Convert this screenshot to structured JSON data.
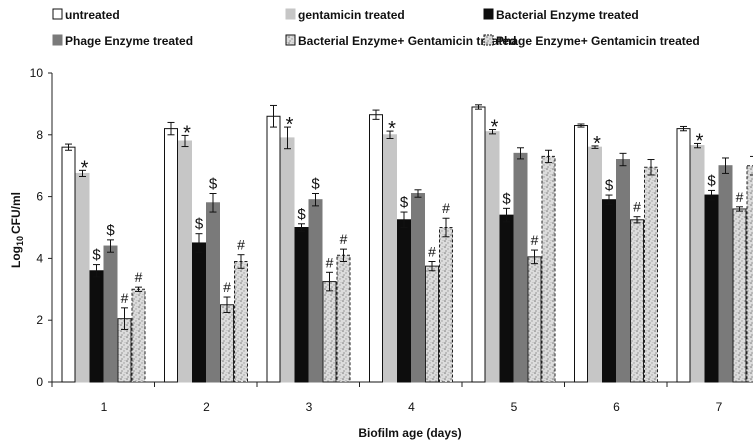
{
  "chart_data": {
    "type": "bar",
    "title": "",
    "xlabel": "Biofilm age (days)",
    "ylabel_prefix": "Log",
    "ylabel_sub": "10",
    "ylabel_suffix": "CFU/ml",
    "ylim": [
      0,
      10
    ],
    "yticks": [
      "0",
      "2",
      "4",
      "6",
      "8",
      "10"
    ],
    "categories": [
      "1",
      "2",
      "3",
      "4",
      "5",
      "6",
      "7"
    ],
    "grid": false,
    "legend_position": "top",
    "series": [
      {
        "name": "untreated",
        "style": "white",
        "values": [
          7.6,
          8.2,
          8.6,
          8.65,
          8.9,
          8.3,
          8.2
        ],
        "errors": [
          0.1,
          0.2,
          0.35,
          0.15,
          0.07,
          0.05,
          0.07
        ],
        "markers": [
          "",
          "",
          "",
          "",
          "",
          "",
          ""
        ]
      },
      {
        "name": "gentamicin treated",
        "style": "lightgray",
        "values": [
          6.75,
          7.8,
          7.9,
          8.0,
          8.1,
          7.6,
          7.65
        ],
        "errors": [
          0.1,
          0.18,
          0.35,
          0.12,
          0.07,
          0.04,
          0.07
        ],
        "markers": [
          "*",
          "*",
          "*",
          "*",
          "*",
          "*",
          "*"
        ]
      },
      {
        "name": "Bacterial Enzyme treated",
        "style": "black",
        "values": [
          3.6,
          4.5,
          5.0,
          5.25,
          5.4,
          5.9,
          6.05
        ],
        "errors": [
          0.2,
          0.3,
          0.12,
          0.25,
          0.22,
          0.15,
          0.15
        ],
        "markers": [
          "$",
          "$",
          "$",
          "$",
          "$",
          "$",
          "$"
        ]
      },
      {
        "name": "Phage Enzyme treated",
        "style": "darkgray",
        "values": [
          4.4,
          5.8,
          5.9,
          6.1,
          7.4,
          7.2,
          7.0
        ],
        "errors": [
          0.2,
          0.3,
          0.2,
          0.12,
          0.18,
          0.2,
          0.25
        ],
        "markers": [
          "$",
          "$",
          "$",
          "",
          "",
          "",
          ""
        ]
      },
      {
        "name": "Bacterial Enzyme+ Gentamicin treated",
        "style": "pattern",
        "values": [
          2.05,
          2.5,
          3.25,
          3.75,
          4.05,
          5.25,
          5.6
        ],
        "errors": [
          0.35,
          0.25,
          0.3,
          0.15,
          0.22,
          0.1,
          0.07
        ],
        "markers": [
          "#",
          "#",
          "#",
          "#",
          "#",
          "#",
          "#"
        ]
      },
      {
        "name": "Phage Enzyme+ Gentamicin treated",
        "style": "pattern-dashed",
        "values": [
          3.0,
          3.9,
          4.1,
          5.0,
          7.3,
          6.95,
          7.0
        ],
        "errors": [
          0.07,
          0.22,
          0.2,
          0.3,
          0.2,
          0.25,
          0.3
        ],
        "markers": [
          "#",
          "#",
          "#",
          "#",
          "",
          "",
          ""
        ]
      }
    ]
  }
}
